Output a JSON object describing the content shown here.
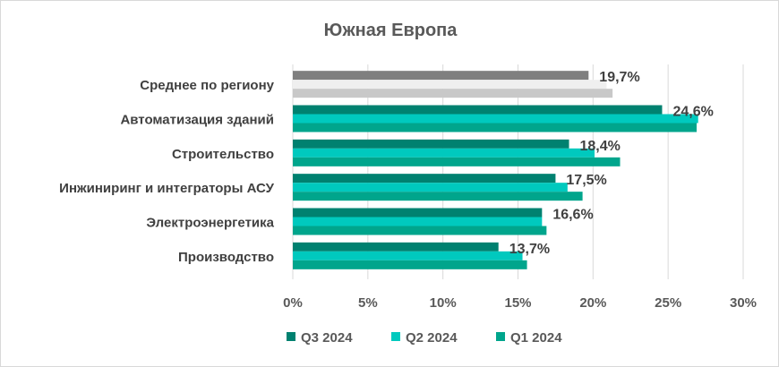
{
  "chart_data": {
    "type": "bar",
    "orientation": "horizontal",
    "title": "Южная Европа",
    "categories": [
      "Среднее по региону",
      "Автоматизация зданий",
      "Строительство",
      "Инжиниринг и интеграторы АСУ",
      "Электроэнергетика",
      "Производство"
    ],
    "series": [
      {
        "name": "Q3 2024",
        "color": "#008170",
        "avg_color": "#7f7f7f",
        "values": [
          19.7,
          24.6,
          18.4,
          17.5,
          16.6,
          13.7
        ]
      },
      {
        "name": "Q2 2024",
        "color": "#00c9be",
        "avg_color": "#efefef",
        "values": [
          20.9,
          27.0,
          20.1,
          18.3,
          16.6,
          15.3
        ]
      },
      {
        "name": "Q1 2024",
        "color": "#00a58c",
        "avg_color": "#c8c8c8",
        "values": [
          21.3,
          26.9,
          21.8,
          19.3,
          16.9,
          15.6
        ]
      }
    ],
    "data_labels": [
      "19,7%",
      "24,6%",
      "18,4%",
      "17,5%",
      "16,6%",
      "13,7%"
    ],
    "xticks": [
      "0%",
      "5%",
      "10%",
      "15%",
      "20%",
      "25%",
      "30%"
    ],
    "xlim": [
      0,
      30
    ],
    "grid": true,
    "legend": "bottom"
  }
}
